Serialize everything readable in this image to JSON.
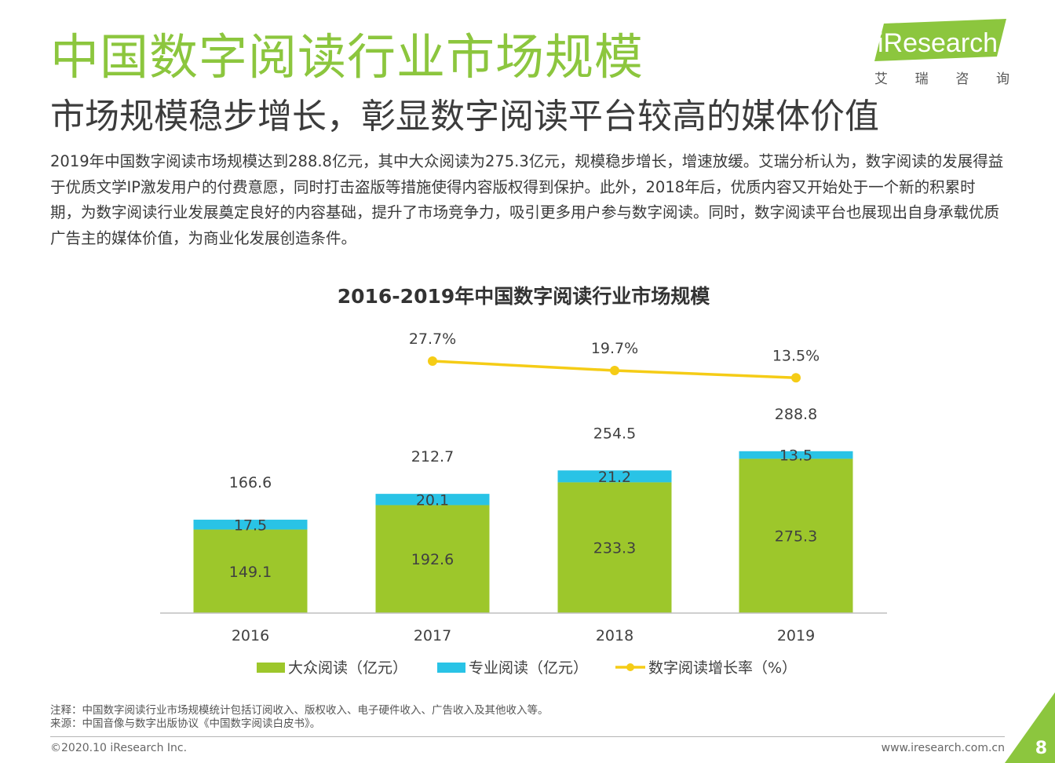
{
  "page": {
    "title": "中国数字阅读行业市场规模",
    "subtitle": "市场规模稳步增长，彰显数字阅读平台较高的媒体价值",
    "body": "2019年中国数字阅读市场规模达到288.8亿元，其中大众阅读为275.3亿元，规模稳步增长，增速放缓。艾瑞分析认为，数字阅读的发展得益于优质文学IP激发用户的付费意愿，同时打击盗版等措施使得内容版权得到保护。此外，2018年后，优质内容又开始处于一个新的积累时期，为数字阅读行业发展奠定良好的内容基础，提升了市场竞争力，吸引更多用户参与数字阅读。同时，数字阅读平台也展现出自身承载优质广告主的媒体价值，为商业化发展创造条件。",
    "logo_text": "iResearch",
    "logo_sub": [
      "艾",
      "瑞",
      "咨",
      "询"
    ],
    "footnote_1": "注释：中国数字阅读行业市场规模统计包括订阅收入、版权收入、电子硬件收入、广告收入及其他收入等。",
    "footnote_2": "来源：中国音像与数字出版协议《中国数字阅读白皮书》。",
    "copyright": "©2020.10 iResearch Inc.",
    "website": "www.iresearch.com.cn",
    "page_number": "8",
    "colors": {
      "title_green": "#8cc63e",
      "bar_green": "#9dc72b",
      "bar_cyan": "#29c3e6",
      "line_yellow": "#f5cc16"
    }
  },
  "chart_data": {
    "type": "bar",
    "stacked": true,
    "title": "2016-2019年中国数字阅读行业市场规模",
    "categories": [
      "2016",
      "2017",
      "2018",
      "2019"
    ],
    "series": [
      {
        "name": "大众阅读（亿元）",
        "type": "bar",
        "values": [
          149.1,
          192.6,
          233.3,
          275.3
        ],
        "color": "#9dc72b"
      },
      {
        "name": "专业阅读（亿元）",
        "type": "bar",
        "values": [
          17.5,
          20.1,
          21.2,
          13.5
        ],
        "color": "#29c3e6"
      },
      {
        "name": "数字阅读增长率（%）",
        "type": "line",
        "values": [
          null,
          27.7,
          19.7,
          13.5
        ],
        "labels": [
          null,
          "27.7%",
          "19.7%",
          "13.5%"
        ],
        "color": "#f5cc16"
      }
    ],
    "totals": [
      166.6,
      212.7,
      254.5,
      288.8
    ],
    "legend_position": "bottom",
    "grid": false
  }
}
